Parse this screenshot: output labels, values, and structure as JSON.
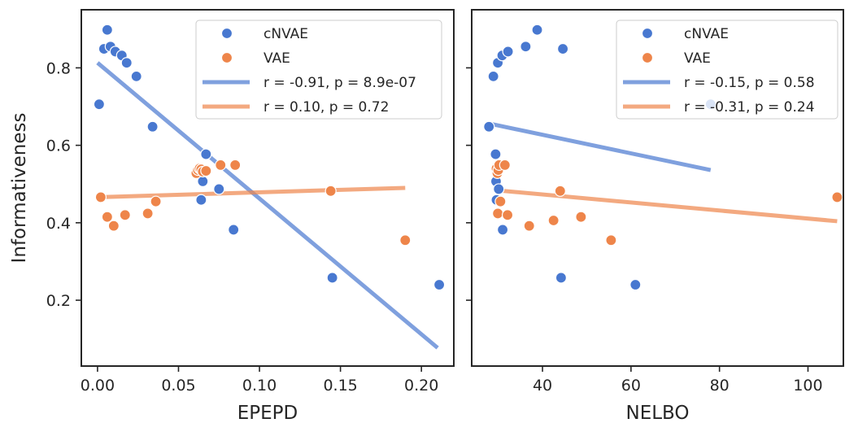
{
  "chart_data": [
    {
      "type": "scatter",
      "title": "",
      "xlabel": "EPEPD",
      "ylabel": "Informativeness",
      "xlim": [
        -0.01,
        0.22
      ],
      "ylim": [
        0.03,
        0.95
      ],
      "xticks": [
        "0.00",
        "0.05",
        "0.10",
        "0.15",
        "0.20"
      ],
      "xtick_values": [
        0.0,
        0.05,
        0.1,
        0.15,
        0.2
      ],
      "yticks": [
        "0.2",
        "0.4",
        "0.6",
        "0.8"
      ],
      "ytick_values": [
        0.2,
        0.4,
        0.6,
        0.8
      ],
      "grid": false,
      "legend_position": "top-right",
      "series": [
        {
          "name": "cNVAE",
          "color": "#4878d0",
          "points": [
            [
              0.001,
              0.706
            ],
            [
              0.004,
              0.849
            ],
            [
              0.006,
              0.898
            ],
            [
              0.008,
              0.855
            ],
            [
              0.011,
              0.842
            ],
            [
              0.015,
              0.832
            ],
            [
              0.018,
              0.813
            ],
            [
              0.024,
              0.778
            ],
            [
              0.034,
              0.648
            ],
            [
              0.064,
              0.459
            ],
            [
              0.065,
              0.507
            ],
            [
              0.067,
              0.577
            ],
            [
              0.075,
              0.487
            ],
            [
              0.084,
              0.382
            ],
            [
              0.145,
              0.258
            ],
            [
              0.211,
              0.24
            ]
          ]
        },
        {
          "name": "VAE",
          "color": "#ee854a",
          "points": [
            [
              0.002,
              0.466
            ],
            [
              0.006,
              0.415
            ],
            [
              0.01,
              0.392
            ],
            [
              0.017,
              0.42
            ],
            [
              0.031,
              0.424
            ],
            [
              0.036,
              0.455
            ],
            [
              0.061,
              0.528
            ],
            [
              0.062,
              0.536
            ],
            [
              0.063,
              0.54
            ],
            [
              0.064,
              0.538
            ],
            [
              0.065,
              0.532
            ],
            [
              0.067,
              0.534
            ],
            [
              0.076,
              0.549
            ],
            [
              0.085,
              0.549
            ],
            [
              0.144,
              0.482
            ],
            [
              0.19,
              0.355
            ]
          ]
        }
      ],
      "fits": [
        {
          "label": "r = -0.91, p = 8.9e-07",
          "color": "#4878d0",
          "x": [
            0.0,
            0.21
          ],
          "y": [
            0.813,
            0.077
          ]
        },
        {
          "label": "r = 0.10, p = 0.72",
          "color": "#ee854a",
          "x": [
            0.0,
            0.19
          ],
          "y": [
            0.466,
            0.49
          ]
        }
      ]
    },
    {
      "type": "scatter",
      "title": "",
      "xlabel": "NELBO",
      "ylabel": "",
      "xlim": [
        24,
        108
      ],
      "ylim": [
        0.03,
        0.95
      ],
      "xticks": [
        "40",
        "60",
        "80",
        "100"
      ],
      "xtick_values": [
        40,
        60,
        80,
        100
      ],
      "yticks": [],
      "ytick_values": [
        0.2,
        0.4,
        0.6,
        0.8
      ],
      "grid": false,
      "legend_position": "top-right",
      "series": [
        {
          "name": "cNVAE",
          "color": "#4878d0",
          "points": [
            [
              27.9,
              0.648
            ],
            [
              28.9,
              0.778
            ],
            [
              29.4,
              0.577
            ],
            [
              29.5,
              0.507
            ],
            [
              29.6,
              0.459
            ],
            [
              29.9,
              0.813
            ],
            [
              30.1,
              0.487
            ],
            [
              30.9,
              0.832
            ],
            [
              31.0,
              0.382
            ],
            [
              32.2,
              0.842
            ],
            [
              36.2,
              0.855
            ],
            [
              38.8,
              0.898
            ],
            [
              44.2,
              0.258
            ],
            [
              44.6,
              0.849
            ],
            [
              61.0,
              0.24
            ],
            [
              78.0,
              0.706
            ]
          ]
        },
        {
          "name": "VAE",
          "color": "#ee854a",
          "points": [
            [
              29.6,
              0.54
            ],
            [
              29.8,
              0.528
            ],
            [
              29.9,
              0.424
            ],
            [
              30.0,
              0.536
            ],
            [
              30.2,
              0.549
            ],
            [
              30.5,
              0.455
            ],
            [
              31.5,
              0.549
            ],
            [
              32.1,
              0.42
            ],
            [
              37.0,
              0.392
            ],
            [
              42.5,
              0.406
            ],
            [
              44.0,
              0.482
            ],
            [
              48.7,
              0.415
            ],
            [
              55.5,
              0.355
            ],
            [
              106.6,
              0.466
            ]
          ]
        }
      ],
      "fits": [
        {
          "label": "r = -0.15, p = 0.58",
          "color": "#4878d0",
          "x": [
            28.0,
            78.0
          ],
          "y": [
            0.656,
            0.536
          ]
        },
        {
          "label": "r = -0.31, p = 0.24",
          "color": "#ee854a",
          "x": [
            29.5,
            106.6
          ],
          "y": [
            0.484,
            0.404
          ]
        }
      ]
    }
  ]
}
